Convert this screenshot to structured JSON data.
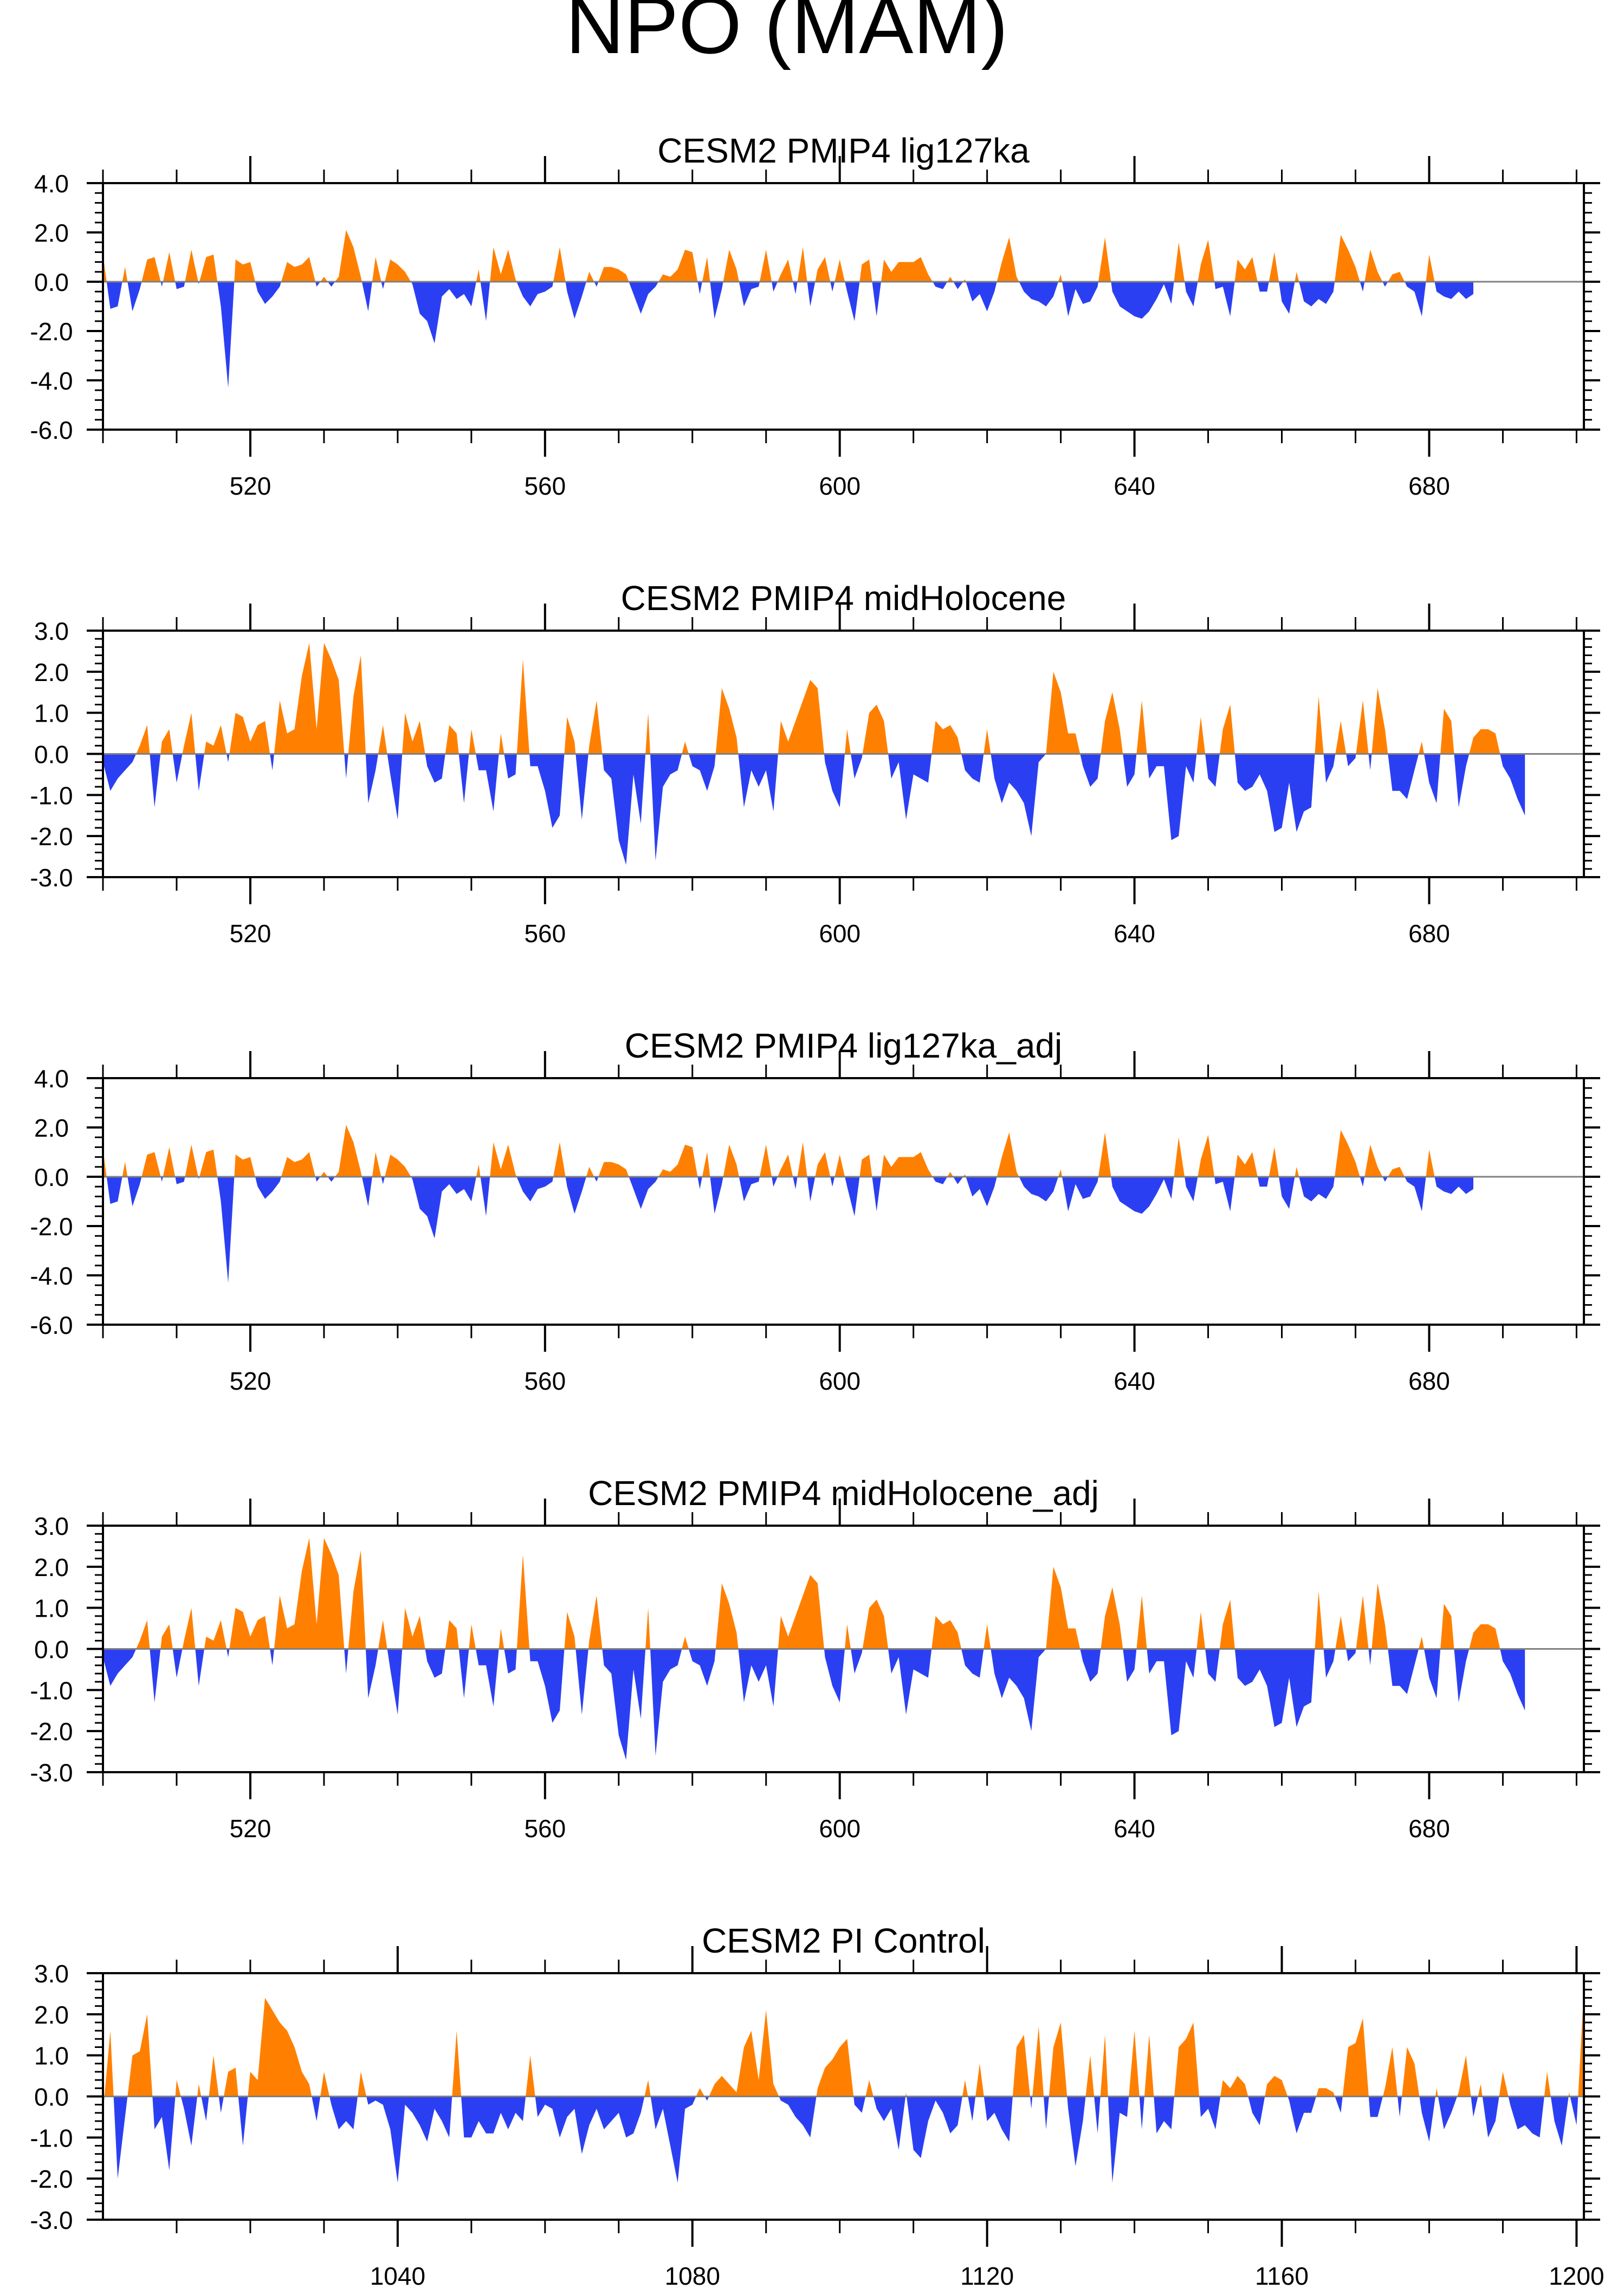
{
  "title": "NPO (MAM)",
  "colors": {
    "positive": "#ff8000",
    "negative": "#2b3ff2",
    "axis": "#000000",
    "zero_line": "#808080"
  },
  "chart_data": [
    {
      "type": "area",
      "title": "CESM2 PMIP4 lig127ka",
      "xlim": [
        500,
        701
      ],
      "ylim": [
        -6.0,
        4.0
      ],
      "yticks": [
        -6.0,
        -4.0,
        -2.0,
        0.0,
        2.0,
        4.0
      ],
      "ytick_labels": [
        "-6.0",
        "-4.0",
        "-2.0",
        "0.0",
        "2.0",
        "4.0"
      ],
      "xticks": [
        520,
        560,
        600,
        640,
        680
      ],
      "xtick_labels": [
        "520",
        "560",
        "600",
        "640",
        "680"
      ],
      "x_start": 500,
      "values": [
        1.1,
        -1.1,
        -1.0,
        0.6,
        -1.2,
        -0.3,
        0.9,
        1.0,
        -0.2,
        1.2,
        -0.3,
        -0.2,
        1.3,
        -0.1,
        1.0,
        1.1,
        -1.0,
        -4.3,
        0.9,
        0.7,
        0.8,
        -0.4,
        -0.9,
        -0.6,
        -0.2,
        0.8,
        0.6,
        0.7,
        1.0,
        -0.2,
        0.2,
        -0.2,
        0.2,
        2.1,
        1.4,
        0.2,
        -1.2,
        1.0,
        -0.3,
        0.9,
        0.7,
        0.4,
        -0.1,
        -1.3,
        -1.6,
        -2.5,
        -0.6,
        -0.3,
        -0.7,
        -0.5,
        -1.0,
        0.5,
        -1.6,
        1.4,
        0.3,
        1.3,
        0.1,
        -0.6,
        -1.0,
        -0.5,
        -0.4,
        -0.2,
        1.4,
        -0.4,
        -1.5,
        -0.6,
        0.4,
        -0.2,
        0.6,
        0.6,
        0.5,
        0.3,
        -0.5,
        -1.3,
        -0.5,
        -0.2,
        0.3,
        0.2,
        0.5,
        1.3,
        1.2,
        -0.5,
        1.0,
        -1.5,
        -0.3,
        1.3,
        0.5,
        -1.0,
        -0.3,
        -0.2,
        1.3,
        -0.4,
        0.3,
        0.9,
        -0.5,
        1.4,
        -1.0,
        0.5,
        1.0,
        -0.4,
        0.9,
        -0.4,
        -1.6,
        0.7,
        0.9,
        -1.4,
        0.9,
        0.4,
        0.8,
        0.8,
        0.8,
        1.0,
        0.3,
        -0.2,
        -0.3,
        0.2,
        -0.3,
        0.1,
        -0.8,
        -0.5,
        -1.2,
        -0.4,
        0.8,
        1.8,
        0.2,
        -0.4,
        -0.7,
        -0.8,
        -1.0,
        -0.6,
        0.3,
        -1.4,
        -0.3,
        -0.9,
        -0.8,
        -0.2,
        1.8,
        -0.4,
        -1.0,
        -1.2,
        -1.4,
        -1.5,
        -1.2,
        -0.7,
        -0.1,
        -0.9,
        1.6,
        -0.4,
        -1.0,
        0.7,
        1.7,
        -0.3,
        -0.2,
        -1.4,
        0.9,
        0.5,
        1.0,
        -0.4,
        -0.4,
        1.2,
        -0.8,
        -1.3,
        0.4,
        -0.8,
        -1.0,
        -0.7,
        -0.9,
        -0.4,
        1.9,
        1.3,
        0.6,
        -0.4,
        1.3,
        0.4,
        -0.2,
        0.3,
        0.4,
        -0.2,
        -0.4,
        -1.4,
        1.1,
        -0.4,
        -0.6,
        -0.7,
        -0.4,
        -0.7,
        -0.5
      ],
      "xlabel": "",
      "ylabel": ""
    },
    {
      "type": "area",
      "title": "CESM2 PMIP4 midHolocene",
      "xlim": [
        500,
        701
      ],
      "ylim": [
        -3.0,
        3.0
      ],
      "yticks": [
        -3.0,
        -2.0,
        -1.0,
        0.0,
        1.0,
        2.0,
        3.0
      ],
      "ytick_labels": [
        "-3.0",
        "-2.0",
        "-1.0",
        "0.0",
        "1.0",
        "2.0",
        "3.0"
      ],
      "xticks": [
        520,
        560,
        600,
        640,
        680
      ],
      "xtick_labels": [
        "520",
        "560",
        "600",
        "640",
        "680"
      ],
      "x_start": 500,
      "values": [
        -0.2,
        -0.9,
        -0.6,
        -0.4,
        -0.2,
        0.2,
        0.7,
        -1.3,
        0.3,
        0.6,
        -0.7,
        0.2,
        1.0,
        -0.9,
        0.3,
        0.2,
        0.7,
        -0.2,
        1.0,
        0.9,
        0.3,
        0.7,
        0.8,
        -0.4,
        1.3,
        0.5,
        0.6,
        1.9,
        2.7,
        0.6,
        2.7,
        2.3,
        1.8,
        -0.6,
        1.4,
        2.4,
        -1.2,
        -0.4,
        0.7,
        -0.5,
        -1.6,
        1.0,
        0.3,
        0.8,
        -0.3,
        -0.7,
        -0.6,
        0.7,
        0.5,
        -1.2,
        0.6,
        -0.4,
        -0.4,
        -1.4,
        0.5,
        -0.6,
        -0.5,
        2.3,
        -0.3,
        -0.3,
        -0.9,
        -1.8,
        -1.5,
        0.9,
        0.3,
        -1.6,
        0.2,
        1.3,
        -0.4,
        -0.6,
        -2.1,
        -2.7,
        -0.5,
        -1.7,
        1.0,
        -2.6,
        -0.8,
        -0.5,
        -0.4,
        0.3,
        -0.3,
        -0.4,
        -0.9,
        -0.3,
        1.6,
        1.1,
        0.4,
        -1.3,
        -0.4,
        -0.8,
        -0.4,
        -1.4,
        0.8,
        0.3,
        0.8,
        1.3,
        1.8,
        1.6,
        -0.2,
        -0.9,
        -1.3,
        0.6,
        -0.6,
        -0.1,
        1.0,
        1.2,
        0.8,
        -0.6,
        -0.2,
        -1.6,
        -0.5,
        -0.6,
        -0.7,
        0.8,
        0.6,
        0.7,
        0.4,
        -0.4,
        -0.6,
        -0.7,
        0.6,
        -0.6,
        -1.2,
        -0.7,
        -0.9,
        -1.2,
        -2.0,
        -0.2,
        0.0,
        2.0,
        1.5,
        0.5,
        0.5,
        -0.3,
        -0.8,
        -0.6,
        0.8,
        1.5,
        0.6,
        -0.8,
        -0.5,
        1.3,
        -0.6,
        -0.3,
        -0.3,
        -2.1,
        -2.0,
        -0.3,
        -0.7,
        0.9,
        -0.6,
        -0.8,
        0.6,
        1.2,
        -0.7,
        -0.9,
        -0.8,
        -0.5,
        -0.9,
        -1.9,
        -1.8,
        -0.7,
        -1.9,
        -1.4,
        -1.3,
        1.4,
        -0.7,
        -0.3,
        0.8,
        -0.3,
        -0.1,
        1.3,
        -0.4,
        1.6,
        0.6,
        -0.9,
        -0.9,
        -1.1,
        -0.4,
        0.3,
        -0.7,
        -1.2,
        1.1,
        0.8,
        -1.3,
        -0.3,
        0.4,
        0.6,
        0.6,
        0.5,
        -0.3,
        -0.6,
        -1.1,
        -1.5
      ]
    },
    {
      "type": "area",
      "title": "CESM2 PMIP4 lig127ka_adj",
      "xlim": [
        500,
        701
      ],
      "ylim": [
        -6.0,
        4.0
      ],
      "yticks": [
        -6.0,
        -4.0,
        -2.0,
        0.0,
        2.0,
        4.0
      ],
      "ytick_labels": [
        "-6.0",
        "-4.0",
        "-2.0",
        "0.0",
        "2.0",
        "4.0"
      ],
      "xticks": [
        520,
        560,
        600,
        640,
        680
      ],
      "xtick_labels": [
        "520",
        "560",
        "600",
        "640",
        "680"
      ],
      "x_start": 500,
      "values": [
        1.1,
        -1.1,
        -1.0,
        0.6,
        -1.2,
        -0.3,
        0.9,
        1.0,
        -0.2,
        1.2,
        -0.3,
        -0.2,
        1.3,
        -0.1,
        1.0,
        1.1,
        -1.0,
        -4.3,
        0.9,
        0.7,
        0.8,
        -0.4,
        -0.9,
        -0.6,
        -0.2,
        0.8,
        0.6,
        0.7,
        1.0,
        -0.2,
        0.2,
        -0.2,
        0.2,
        2.1,
        1.4,
        0.2,
        -1.2,
        1.0,
        -0.3,
        0.9,
        0.7,
        0.4,
        -0.1,
        -1.3,
        -1.6,
        -2.5,
        -0.6,
        -0.3,
        -0.7,
        -0.5,
        -1.0,
        0.5,
        -1.6,
        1.4,
        0.3,
        1.3,
        0.1,
        -0.6,
        -1.0,
        -0.5,
        -0.4,
        -0.2,
        1.4,
        -0.4,
        -1.5,
        -0.6,
        0.4,
        -0.2,
        0.6,
        0.6,
        0.5,
        0.3,
        -0.5,
        -1.3,
        -0.5,
        -0.2,
        0.3,
        0.2,
        0.5,
        1.3,
        1.2,
        -0.5,
        1.0,
        -1.5,
        -0.3,
        1.3,
        0.5,
        -1.0,
        -0.3,
        -0.2,
        1.3,
        -0.4,
        0.3,
        0.9,
        -0.5,
        1.4,
        -1.0,
        0.5,
        1.0,
        -0.4,
        0.9,
        -0.4,
        -1.6,
        0.7,
        0.9,
        -1.4,
        0.9,
        0.4,
        0.8,
        0.8,
        0.8,
        1.0,
        0.3,
        -0.2,
        -0.3,
        0.2,
        -0.3,
        0.1,
        -0.8,
        -0.5,
        -1.2,
        -0.4,
        0.8,
        1.8,
        0.2,
        -0.4,
        -0.7,
        -0.8,
        -1.0,
        -0.6,
        0.3,
        -1.4,
        -0.3,
        -0.9,
        -0.8,
        -0.2,
        1.8,
        -0.4,
        -1.0,
        -1.2,
        -1.4,
        -1.5,
        -1.2,
        -0.7,
        -0.1,
        -0.9,
        1.6,
        -0.4,
        -1.0,
        0.7,
        1.7,
        -0.3,
        -0.2,
        -1.4,
        0.9,
        0.5,
        1.0,
        -0.4,
        -0.4,
        1.2,
        -0.8,
        -1.3,
        0.4,
        -0.8,
        -1.0,
        -0.7,
        -0.9,
        -0.4,
        1.9,
        1.3,
        0.6,
        -0.4,
        1.3,
        0.4,
        -0.2,
        0.3,
        0.4,
        -0.2,
        -0.4,
        -1.4,
        1.1,
        -0.4,
        -0.6,
        -0.7,
        -0.4,
        -0.7,
        -0.5
      ]
    },
    {
      "type": "area",
      "title": "CESM2 PMIP4 midHolocene_adj",
      "xlim": [
        500,
        701
      ],
      "ylim": [
        -3.0,
        3.0
      ],
      "yticks": [
        -3.0,
        -2.0,
        -1.0,
        0.0,
        1.0,
        2.0,
        3.0
      ],
      "ytick_labels": [
        "-3.0",
        "-2.0",
        "-1.0",
        "0.0",
        "1.0",
        "2.0",
        "3.0"
      ],
      "xticks": [
        520,
        560,
        600,
        640,
        680
      ],
      "xtick_labels": [
        "520",
        "560",
        "600",
        "640",
        "680"
      ],
      "x_start": 500,
      "values": [
        -0.2,
        -0.9,
        -0.6,
        -0.4,
        -0.2,
        0.2,
        0.7,
        -1.3,
        0.3,
        0.6,
        -0.7,
        0.2,
        1.0,
        -0.9,
        0.3,
        0.2,
        0.7,
        -0.2,
        1.0,
        0.9,
        0.3,
        0.7,
        0.8,
        -0.4,
        1.3,
        0.5,
        0.6,
        1.9,
        2.7,
        0.6,
        2.7,
        2.3,
        1.8,
        -0.6,
        1.4,
        2.4,
        -1.2,
        -0.4,
        0.7,
        -0.5,
        -1.6,
        1.0,
        0.3,
        0.8,
        -0.3,
        -0.7,
        -0.6,
        0.7,
        0.5,
        -1.2,
        0.6,
        -0.4,
        -0.4,
        -1.4,
        0.5,
        -0.6,
        -0.5,
        2.3,
        -0.3,
        -0.3,
        -0.9,
        -1.8,
        -1.5,
        0.9,
        0.3,
        -1.6,
        0.2,
        1.3,
        -0.4,
        -0.6,
        -2.1,
        -2.7,
        -0.5,
        -1.7,
        1.0,
        -2.6,
        -0.8,
        -0.5,
        -0.4,
        0.3,
        -0.3,
        -0.4,
        -0.9,
        -0.3,
        1.6,
        1.1,
        0.4,
        -1.3,
        -0.4,
        -0.8,
        -0.4,
        -1.4,
        0.8,
        0.3,
        0.8,
        1.3,
        1.8,
        1.6,
        -0.2,
        -0.9,
        -1.3,
        0.6,
        -0.6,
        -0.1,
        1.0,
        1.2,
        0.8,
        -0.6,
        -0.2,
        -1.6,
        -0.5,
        -0.6,
        -0.7,
        0.8,
        0.6,
        0.7,
        0.4,
        -0.4,
        -0.6,
        -0.7,
        0.6,
        -0.6,
        -1.2,
        -0.7,
        -0.9,
        -1.2,
        -2.0,
        -0.2,
        0.0,
        2.0,
        1.5,
        0.5,
        0.5,
        -0.3,
        -0.8,
        -0.6,
        0.8,
        1.5,
        0.6,
        -0.8,
        -0.5,
        1.3,
        -0.6,
        -0.3,
        -0.3,
        -2.1,
        -2.0,
        -0.3,
        -0.7,
        0.9,
        -0.6,
        -0.8,
        0.6,
        1.2,
        -0.7,
        -0.9,
        -0.8,
        -0.5,
        -0.9,
        -1.9,
        -1.8,
        -0.7,
        -1.9,
        -1.4,
        -1.3,
        1.4,
        -0.7,
        -0.3,
        0.8,
        -0.3,
        -0.1,
        1.3,
        -0.4,
        1.6,
        0.6,
        -0.9,
        -0.9,
        -1.1,
        -0.4,
        0.3,
        -0.7,
        -1.2,
        1.1,
        0.8,
        -1.3,
        -0.3,
        0.4,
        0.6,
        0.6,
        0.5,
        -0.3,
        -0.6,
        -1.1,
        -1.5
      ]
    },
    {
      "type": "area",
      "title": "CESM2 PI Control",
      "xlim": [
        1000,
        1201
      ],
      "ylim": [
        -3.0,
        3.0
      ],
      "yticks": [
        -3.0,
        -2.0,
        -1.0,
        0.0,
        1.0,
        2.0,
        3.0
      ],
      "ytick_labels": [
        "-3.0",
        "-2.0",
        "-1.0",
        "0.0",
        "1.0",
        "2.0",
        "3.0"
      ],
      "xticks": [
        1040,
        1080,
        1120,
        1160,
        1200
      ],
      "xtick_labels": [
        "1040",
        "1080",
        "1120",
        "1160",
        "1200"
      ],
      "x_start": 1000,
      "values": [
        -0.4,
        1.6,
        -2.0,
        -0.5,
        1.0,
        1.1,
        2.0,
        -0.8,
        -0.5,
        -1.8,
        0.4,
        -0.3,
        -1.2,
        0.3,
        -0.6,
        1.0,
        -0.4,
        0.6,
        0.7,
        -1.2,
        0.6,
        0.4,
        2.4,
        2.1,
        1.8,
        1.6,
        1.2,
        0.6,
        0.3,
        -0.6,
        0.6,
        -0.2,
        -0.8,
        -0.6,
        -0.8,
        0.6,
        -0.2,
        -0.1,
        -0.2,
        -0.8,
        -2.1,
        -0.2,
        -0.4,
        -0.7,
        -1.1,
        -0.3,
        -0.6,
        -1.0,
        1.6,
        -1.0,
        -1.0,
        -0.6,
        -0.9,
        -0.9,
        -0.4,
        -0.8,
        -0.4,
        -0.6,
        1.0,
        -0.5,
        -0.2,
        -0.3,
        -1.0,
        -0.5,
        -0.3,
        -1.4,
        -0.7,
        -0.3,
        -0.8,
        -0.6,
        -0.4,
        -1.0,
        -0.9,
        -0.4,
        0.4,
        -0.8,
        -0.3,
        -1.2,
        -2.1,
        -0.3,
        -0.2,
        0.2,
        -0.1,
        0.3,
        0.5,
        0.3,
        0.1,
        1.2,
        1.6,
        0.4,
        2.1,
        0.3,
        -0.1,
        -0.2,
        -0.5,
        -0.7,
        -1.0,
        0.2,
        0.7,
        0.9,
        1.2,
        1.4,
        -0.2,
        -0.4,
        0.4,
        -0.3,
        -0.6,
        -0.3,
        -1.3,
        0.1,
        -1.3,
        -1.5,
        -0.6,
        -0.1,
        -0.4,
        -0.9,
        -0.7,
        0.4,
        -0.6,
        0.8,
        -0.6,
        -0.4,
        -0.8,
        -1.1,
        1.2,
        1.5,
        -0.3,
        1.7,
        -0.8,
        1.2,
        1.8,
        -0.3,
        -1.7,
        -0.6,
        1.0,
        -0.9,
        1.5,
        -2.1,
        -0.4,
        -0.5,
        1.6,
        -0.8,
        1.5,
        -0.9,
        -0.6,
        -0.8,
        1.2,
        1.4,
        1.8,
        -0.5,
        -0.3,
        -0.8,
        0.4,
        0.2,
        0.5,
        0.3,
        -0.4,
        -0.7,
        0.3,
        0.5,
        0.4,
        -0.1,
        -0.9,
        -0.4,
        -0.4,
        0.2,
        0.2,
        0.1,
        -0.4,
        1.2,
        1.3,
        1.9,
        -0.5,
        -0.5,
        0.2,
        1.2,
        -0.5,
        1.2,
        0.8,
        -0.4,
        -1.1,
        0.2,
        -0.8,
        -0.4,
        0.1,
        1.0,
        -0.5,
        0.3,
        -1.0,
        -0.6,
        0.6,
        -0.2,
        -0.8,
        -0.7,
        -0.9,
        -1.0,
        0.6,
        -0.6,
        -1.2,
        0.1,
        -0.7,
        2.6,
        0.8
      ]
    }
  ]
}
